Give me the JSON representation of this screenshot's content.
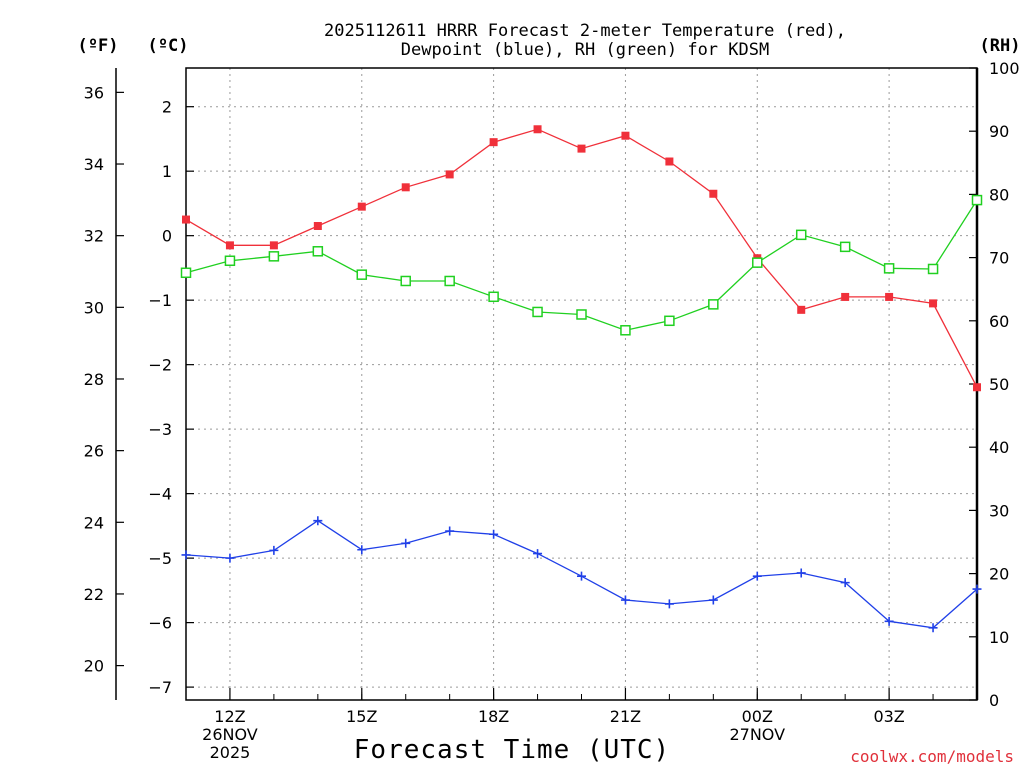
{
  "chart_data": {
    "type": "line",
    "title": "2025112611 HRRR Forecast 2-meter Temperature (red),",
    "subtitle": "Dewpoint (blue), RH (green) for KDSM",
    "xlabel": "Forecast Time (UTC)",
    "credit": "coolwx.com/models",
    "units": {
      "fahrenheit": "(ºF)",
      "celsius": "(ºC)",
      "rh": "(RH)"
    },
    "x_hours": [
      11,
      12,
      13,
      14,
      15,
      16,
      17,
      18,
      19,
      20,
      21,
      22,
      23,
      24,
      25,
      26,
      27,
      28,
      29
    ],
    "x_ticks": [
      {
        "hour": 12,
        "lines": [
          "12Z",
          "26NOV",
          "2025"
        ]
      },
      {
        "hour": 15,
        "lines": [
          "15Z"
        ]
      },
      {
        "hour": 18,
        "lines": [
          "18Z"
        ]
      },
      {
        "hour": 21,
        "lines": [
          "21Z"
        ]
      },
      {
        "hour": 24,
        "lines": [
          "00Z",
          "27NOV"
        ]
      },
      {
        "hour": 27,
        "lines": [
          "03Z"
        ]
      }
    ],
    "celsius_axis": {
      "ylim": [
        -7.2,
        2.6
      ],
      "ticks": [
        2,
        1,
        0,
        -1,
        -2,
        -3,
        -4,
        -5,
        -6,
        -7
      ]
    },
    "fahrenheit_axis": {
      "ticks": [
        36,
        34,
        32,
        30,
        28,
        26,
        24,
        22,
        20
      ]
    },
    "rh_axis": {
      "ylim": [
        0,
        100
      ],
      "ticks": [
        100,
        90,
        80,
        70,
        60,
        50,
        40,
        30,
        20,
        10,
        0
      ]
    },
    "series": [
      {
        "name": "2-meter Temperature",
        "units": "C",
        "color": "#f0303a",
        "marker": "filled-square",
        "values": [
          0.25,
          -0.15,
          -0.15,
          0.15,
          0.45,
          0.75,
          0.95,
          1.45,
          1.65,
          1.35,
          1.55,
          1.15,
          0.65,
          -0.35,
          -1.15,
          -0.95,
          -0.95,
          -1.05,
          -2.35
        ]
      },
      {
        "name": "Dewpoint",
        "units": "C",
        "color": "#2040e8",
        "marker": "plus",
        "values": [
          -4.95,
          -5.0,
          -4.88,
          -4.42,
          -4.87,
          -4.77,
          -4.58,
          -4.63,
          -4.93,
          -5.28,
          -5.65,
          -5.71,
          -5.65,
          -5.28,
          -5.23,
          -5.38,
          -5.98,
          -6.08,
          -5.48
        ]
      },
      {
        "name": "RH",
        "units": "%",
        "color": "#20d020",
        "marker": "open-square",
        "values": [
          67.6,
          69.5,
          70.2,
          71.0,
          67.3,
          66.3,
          66.3,
          63.8,
          61.4,
          61.0,
          58.5,
          60.0,
          62.6,
          69.2,
          73.6,
          71.7,
          68.3,
          68.2,
          79.1
        ]
      }
    ]
  }
}
